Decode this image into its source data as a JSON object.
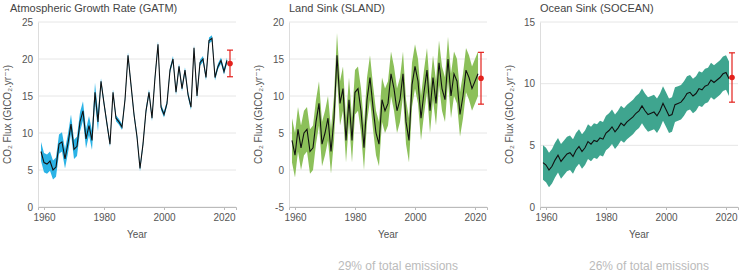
{
  "chart_data": [
    {
      "type": "line",
      "title": "Atmospheric Growth Rate (GATM)",
      "x_label": "Year",
      "y_label": "CO₂ Flux (GtCO₂.yr⁻¹)",
      "color": "#2bb3e6",
      "x": [
        1959,
        1960,
        1961,
        1962,
        1963,
        1964,
        1965,
        1966,
        1967,
        1968,
        1969,
        1970,
        1971,
        1972,
        1973,
        1974,
        1975,
        1976,
        1977,
        1978,
        1979,
        1980,
        1981,
        1982,
        1983,
        1984,
        1985,
        1986,
        1987,
        1988,
        1989,
        1990,
        1991,
        1992,
        1993,
        1994,
        1995,
        1996,
        1997,
        1998,
        1999,
        2000,
        2001,
        2002,
        2003,
        2004,
        2005,
        2006,
        2007,
        2008,
        2009,
        2010,
        2011,
        2012,
        2013,
        2014,
        2015,
        2016,
        2017,
        2018,
        2019,
        2020,
        2021
      ],
      "xlim": [
        1958,
        2024
      ],
      "xticks": [
        1960,
        1980,
        2000,
        2020
      ],
      "ylim": [
        0,
        25
      ],
      "yticks": [
        0,
        5,
        10,
        15,
        20,
        25
      ],
      "grid": true,
      "series": [
        {
          "color": "#111111",
          "values": [
            7.5,
            6.0,
            5.8,
            6.2,
            5.0,
            5.4,
            8.5,
            8.8,
            6.5,
            8.6,
            11.2,
            7.8,
            8.2,
            11.5,
            13.0,
            9.2,
            11.0,
            9.0,
            15.5,
            11.5,
            17.0,
            14.0,
            11.2,
            8.5,
            15.5,
            12.0,
            11.5,
            10.8,
            14.5,
            20.5,
            16.5,
            12.5,
            9.5,
            5.2,
            8.5,
            13.0,
            15.5,
            12.0,
            17.5,
            22.0,
            13.5,
            12.5,
            14.0,
            18.5,
            20.0,
            15.5,
            19.0,
            16.0,
            18.5,
            15.2,
            13.5,
            21.5,
            15.0,
            19.5,
            20.0,
            17.5,
            22.5,
            22.8,
            17.5,
            19.0,
            19.8,
            18.3,
            19.8
          ],
          "uncertainty": [
            1.3,
            1.3,
            1.3,
            1.3,
            1.3,
            1.3,
            1.3,
            1.3,
            1.3,
            1.3,
            1.3,
            1.3,
            1.3,
            1.3,
            1.3,
            1.3,
            1.3,
            1.3,
            1.3,
            1.3,
            0.4,
            0.4,
            0.4,
            0.4,
            0.4,
            0.4,
            0.4,
            0.4,
            0.4,
            0.4,
            0.4,
            0.4,
            0.4,
            0.4,
            0.4,
            0.4,
            0.4,
            0.4,
            0.4,
            0.4,
            0.4,
            0.4,
            0.4,
            0.4,
            0.4,
            0.4,
            0.4,
            0.4,
            0.4,
            0.4,
            0.4,
            0.4,
            0.4,
            0.4,
            0.4,
            0.4,
            0.4,
            0.4,
            0.4,
            0.4,
            0.4,
            0.4,
            0.4
          ],
          "projection": {
            "x": 2022,
            "value": 19.4,
            "error": 1.8,
            "color": "#e3211c"
          }
        }
      ]
    },
    {
      "type": "line",
      "title": "Land Sink (SLAND)",
      "x_label": "Year",
      "y_label": "CO₂ Flux (GtCO₂.yr⁻¹)",
      "color": "#8cc05a",
      "annotation": "29% of total emissions",
      "x": [
        1959,
        1960,
        1961,
        1962,
        1963,
        1964,
        1965,
        1966,
        1967,
        1968,
        1969,
        1970,
        1971,
        1972,
        1973,
        1974,
        1975,
        1976,
        1977,
        1978,
        1979,
        1980,
        1981,
        1982,
        1983,
        1984,
        1985,
        1986,
        1987,
        1988,
        1989,
        1990,
        1991,
        1992,
        1993,
        1994,
        1995,
        1996,
        1997,
        1998,
        1999,
        2000,
        2001,
        2002,
        2003,
        2004,
        2005,
        2006,
        2007,
        2008,
        2009,
        2010,
        2011,
        2012,
        2013,
        2014,
        2015,
        2016,
        2017,
        2018,
        2019,
        2020,
        2021
      ],
      "xlim": [
        1958,
        2024
      ],
      "xticks": [
        1960,
        1980,
        2000,
        2020
      ],
      "ylim": [
        -5,
        20
      ],
      "yticks": [
        -5,
        0,
        5,
        10,
        15,
        20
      ],
      "grid": true,
      "series": [
        {
          "color": "#111111",
          "values": [
            4.0,
            2.0,
            5.5,
            3.0,
            5.0,
            5.5,
            2.5,
            3.0,
            6.5,
            9.0,
            3.5,
            5.0,
            7.0,
            2.5,
            7.0,
            15.5,
            9.0,
            11.0,
            4.0,
            9.5,
            4.0,
            10.5,
            11.0,
            8.0,
            3.0,
            9.5,
            12.5,
            8.5,
            5.0,
            3.5,
            9.5,
            8.0,
            9.0,
            13.0,
            11.0,
            8.0,
            9.5,
            13.0,
            6.5,
            4.0,
            11.5,
            14.0,
            12.0,
            7.0,
            10.5,
            13.5,
            8.0,
            12.5,
            9.0,
            14.5,
            11.0,
            9.5,
            15.0,
            10.0,
            13.0,
            12.0,
            7.5,
            10.0,
            13.5,
            12.5,
            11.0,
            12.0,
            13.0
          ],
          "uncertainty": 3.0,
          "projection": {
            "x": 2022,
            "value": 12.4,
            "error": 3.5,
            "color": "#e3211c"
          }
        }
      ]
    },
    {
      "type": "line",
      "title": "Ocean Sink (SOCEAN)",
      "x_label": "Year",
      "y_label": "CO₂ Flux (GtCO₂.yr⁻¹)",
      "color": "#3fa58f",
      "annotation": "26% of total emissions",
      "x": [
        1959,
        1960,
        1961,
        1962,
        1963,
        1964,
        1965,
        1966,
        1967,
        1968,
        1969,
        1970,
        1971,
        1972,
        1973,
        1974,
        1975,
        1976,
        1977,
        1978,
        1979,
        1980,
        1981,
        1982,
        1983,
        1984,
        1985,
        1986,
        1987,
        1988,
        1989,
        1990,
        1991,
        1992,
        1993,
        1994,
        1995,
        1996,
        1997,
        1998,
        1999,
        2000,
        2001,
        2002,
        2003,
        2004,
        2005,
        2006,
        2007,
        2008,
        2009,
        2010,
        2011,
        2012,
        2013,
        2014,
        2015,
        2016,
        2017,
        2018,
        2019,
        2020,
        2021
      ],
      "xlim": [
        1958,
        2024
      ],
      "xticks": [
        1960,
        1980,
        2000,
        2020
      ],
      "ylim": [
        0,
        15
      ],
      "yticks": [
        0,
        5,
        10,
        15
      ],
      "grid": true,
      "series": [
        {
          "color": "#111111",
          "values": [
            3.6,
            3.4,
            3.0,
            3.3,
            3.8,
            4.2,
            3.7,
            4.0,
            4.3,
            4.4,
            4.1,
            4.6,
            4.9,
            4.5,
            4.8,
            5.3,
            5.1,
            5.4,
            5.3,
            5.6,
            5.5,
            6.0,
            6.2,
            6.5,
            6.1,
            6.4,
            6.8,
            6.6,
            6.9,
            7.1,
            7.3,
            7.6,
            7.8,
            8.2,
            7.8,
            7.5,
            7.6,
            7.7,
            7.4,
            7.8,
            8.4,
            7.9,
            7.4,
            7.5,
            8.3,
            8.4,
            8.5,
            8.8,
            9.2,
            9.3,
            9.0,
            9.2,
            9.6,
            9.5,
            9.8,
            9.9,
            10.3,
            10.1,
            10.3,
            10.5,
            10.8,
            10.9,
            10.4
          ],
          "uncertainty": 1.4,
          "projection": {
            "x": 2022,
            "value": 10.5,
            "error": 2.0,
            "color": "#e3211c"
          }
        }
      ]
    }
  ]
}
